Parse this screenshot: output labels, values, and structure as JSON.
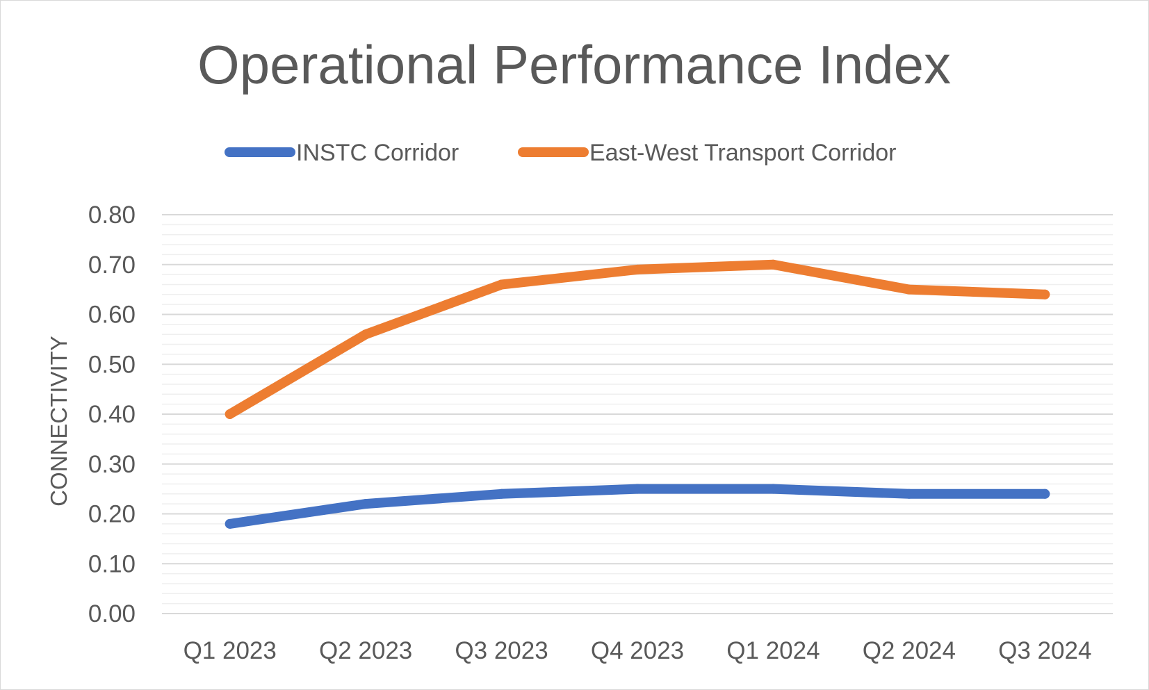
{
  "chart_data": {
    "type": "line",
    "title": "Operational Performance Index",
    "xlabel": "",
    "ylabel": "CONNECTIVITY",
    "categories": [
      "Q1 2023",
      "Q2 2023",
      "Q3 2023",
      "Q4 2023",
      "Q1 2024",
      "Q2 2024",
      "Q3 2024"
    ],
    "ylim": [
      0,
      0.8
    ],
    "yticks": [
      "0.00",
      "0.10",
      "0.20",
      "0.30",
      "0.40",
      "0.50",
      "0.60",
      "0.70",
      "0.80"
    ],
    "grid": true,
    "legend_position": "top",
    "series": [
      {
        "name": "INSTC Corridor",
        "color": "#4472c4",
        "values": [
          0.18,
          0.22,
          0.24,
          0.25,
          0.25,
          0.24,
          0.24
        ]
      },
      {
        "name": "East-West Transport Corridor",
        "color": "#ed7d31",
        "values": [
          0.4,
          0.56,
          0.66,
          0.69,
          0.7,
          0.65,
          0.64
        ]
      }
    ]
  }
}
